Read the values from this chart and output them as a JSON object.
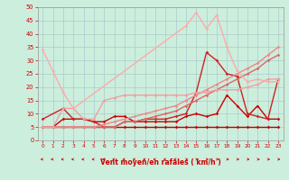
{
  "xlabel": "Vent moyen/en rafales ( km/h )",
  "xlim": [
    -0.5,
    23.5
  ],
  "ylim": [
    0,
    50
  ],
  "xticks": [
    0,
    1,
    2,
    3,
    4,
    5,
    6,
    7,
    8,
    9,
    10,
    11,
    12,
    13,
    14,
    15,
    16,
    17,
    18,
    19,
    20,
    21,
    22,
    23
  ],
  "yticks": [
    0,
    5,
    10,
    15,
    20,
    25,
    30,
    35,
    40,
    45,
    50
  ],
  "bg_color": "#cceedd",
  "grid_color": "#aacccc",
  "series": [
    {
      "x": [
        0,
        1,
        2,
        3,
        4,
        5,
        6,
        7,
        8,
        9,
        10,
        11,
        12,
        13,
        14,
        15,
        16,
        17,
        18,
        19,
        20,
        21,
        22,
        23
      ],
      "y": [
        5,
        5,
        5,
        5,
        5,
        5,
        5,
        5,
        5,
        5,
        5,
        5,
        5,
        5,
        5,
        5,
        5,
        5,
        5,
        5,
        5,
        5,
        5,
        5
      ],
      "color": "#bb0000",
      "lw": 1.0,
      "marker": "D",
      "ms": 1.8
    },
    {
      "x": [
        0,
        1,
        2,
        3,
        4,
        5,
        6,
        7,
        8,
        9,
        10,
        11,
        12,
        13,
        14,
        15,
        16,
        17,
        18,
        19,
        20,
        21,
        22,
        23
      ],
      "y": [
        5,
        5,
        8,
        8,
        8,
        7,
        7,
        9,
        9,
        7,
        7,
        7,
        7,
        7,
        9,
        10,
        9,
        10,
        17,
        13,
        9,
        13,
        8,
        8
      ],
      "color": "#cc0000",
      "lw": 1.0,
      "marker": "D",
      "ms": 1.8
    },
    {
      "x": [
        0,
        2,
        3,
        4,
        5,
        6,
        7,
        8,
        9,
        10,
        11,
        12,
        13,
        14,
        15,
        16,
        17,
        18,
        19,
        20,
        21,
        22,
        23
      ],
      "y": [
        8,
        12,
        8,
        8,
        7,
        5,
        5,
        7,
        7,
        8,
        8,
        8,
        9,
        10,
        18,
        33,
        30,
        25,
        24,
        10,
        9,
        8,
        23
      ],
      "color": "#cc2222",
      "lw": 1.0,
      "marker": "D",
      "ms": 1.8
    },
    {
      "x": [
        0,
        1,
        2,
        3,
        4,
        5,
        6,
        7,
        8,
        9,
        10,
        11,
        12,
        13,
        14,
        15,
        16,
        17,
        18,
        19,
        20,
        21,
        22,
        23
      ],
      "y": [
        5,
        5,
        5,
        5,
        5,
        5,
        5,
        5,
        7,
        7,
        8,
        9,
        10,
        11,
        13,
        15,
        17,
        19,
        21,
        23,
        25,
        27,
        30,
        32
      ],
      "color": "#dd6666",
      "lw": 1.0,
      "marker": "D",
      "ms": 1.8
    },
    {
      "x": [
        0,
        1,
        2,
        3,
        4,
        5,
        6,
        7,
        8,
        9,
        10,
        11,
        12,
        13,
        14,
        15,
        16,
        17,
        18,
        19,
        20,
        21,
        22,
        23
      ],
      "y": [
        5,
        5,
        5,
        5,
        5,
        5,
        6,
        7,
        8,
        9,
        10,
        11,
        12,
        13,
        15,
        17,
        19,
        21,
        23,
        25,
        27,
        29,
        32,
        35
      ],
      "color": "#ee8888",
      "lw": 1.0,
      "marker": "D",
      "ms": 1.8
    },
    {
      "x": [
        0,
        1,
        2,
        3,
        4,
        5,
        6,
        7,
        8,
        9,
        10,
        11,
        12,
        13,
        14,
        15,
        16,
        17,
        18,
        19,
        20,
        21,
        22,
        23
      ],
      "y": [
        5,
        5,
        12,
        12,
        8,
        8,
        15,
        16,
        17,
        17,
        17,
        17,
        17,
        17,
        17,
        18,
        18,
        19,
        19,
        19,
        20,
        21,
        23,
        23
      ],
      "color": "#f0a0a0",
      "lw": 1.0,
      "marker": "D",
      "ms": 1.8
    },
    {
      "x": [
        0,
        1,
        2,
        3,
        14,
        15,
        16,
        17,
        18,
        19,
        20,
        21,
        22,
        23
      ],
      "y": [
        34,
        26,
        18,
        12,
        43,
        48,
        42,
        47,
        35,
        26,
        22,
        23,
        22,
        22
      ],
      "color": "#ffaaaa",
      "lw": 1.0,
      "marker": "D",
      "ms": 1.8
    }
  ],
  "arrow_directions": [
    "left",
    "left",
    "left",
    "left",
    "left",
    "left",
    "left",
    "left",
    "left",
    "left",
    "left",
    "left",
    "left",
    "left",
    "right",
    "right",
    "right",
    "right",
    "right",
    "right",
    "right",
    "right",
    "right",
    "right"
  ]
}
